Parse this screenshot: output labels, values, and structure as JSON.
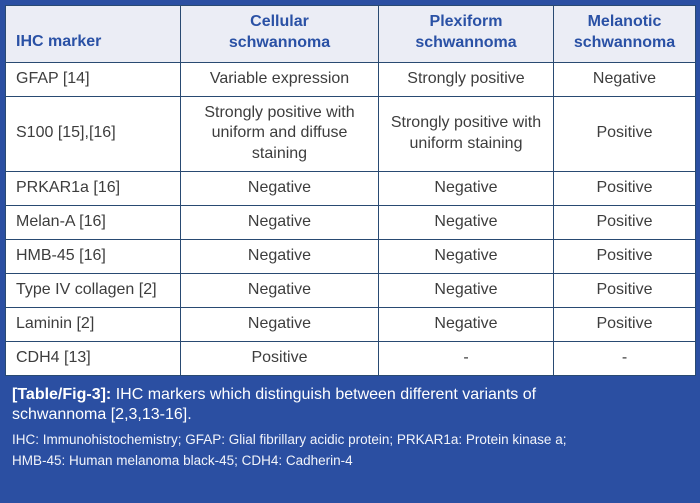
{
  "table": {
    "header": [
      "IHC marker",
      "Cellular schwannoma",
      "Plexiform schwannoma",
      "Melanotic schwannoma"
    ],
    "rows": [
      [
        "GFAP [14]",
        "Variable expression",
        "Strongly positive",
        "Negative"
      ],
      [
        "S100 [15],[16]",
        "Strongly positive with uniform and diffuse staining",
        "Strongly positive with uniform staining",
        "Positive"
      ],
      [
        "PRKAR1a [16]",
        "Negative",
        "Negative",
        "Positive"
      ],
      [
        "Melan-A [16]",
        "Negative",
        "Negative",
        "Positive"
      ],
      [
        "HMB-45 [16]",
        "Negative",
        "Negative",
        "Positive"
      ],
      [
        "Type IV collagen [2]",
        "Negative",
        "Negative",
        "Positive"
      ],
      [
        "Laminin [2]",
        "Negative",
        "Negative",
        "Positive"
      ],
      [
        "CDH4 [13]",
        "Positive",
        "-",
        "-"
      ]
    ]
  },
  "caption": {
    "label": "[Table/Fig-3]:",
    "text": "IHC markers which distinguish between different variants of schwannoma [2,3,13-16].",
    "footnotes": [
      "IHC: Immunohistochemistry; GFAP: Glial fibrillary acidic protein; PRKAR1a: Protein kinase a;",
      "HMB-45: Human melanoma black-45; CDH4: Cadherin-4"
    ]
  },
  "colors": {
    "band_blue": "#2b4fa2",
    "grid_navy": "#294a72",
    "header_bg": "#ebedf5",
    "header_text": "#2a51a5",
    "body_text": "#3d3d3d"
  }
}
